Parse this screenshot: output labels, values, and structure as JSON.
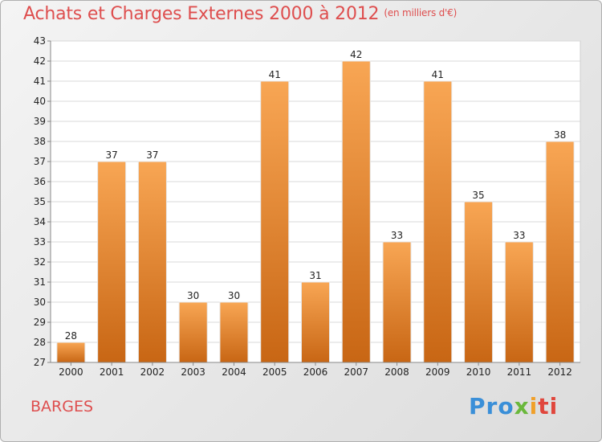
{
  "title": "Achats et Charges Externes 2000 à 2012",
  "subtitle": "(en milliers d'€)",
  "commune": "BARGES",
  "logo": {
    "p1": "Pro",
    "p2": "x",
    "p3": "i",
    "p4": "ti"
  },
  "colors": {
    "bar_light": "#f8a654",
    "bar_dark": "#c86614",
    "title": "#de4e4e"
  },
  "chart_data": {
    "type": "bar",
    "title": "Achats et Charges Externes 2000 à 2012",
    "categories": [
      "2000",
      "2001",
      "2002",
      "2003",
      "2004",
      "2005",
      "2006",
      "2007",
      "2008",
      "2009",
      "2010",
      "2011",
      "2012"
    ],
    "values": [
      28,
      37,
      37,
      30,
      30,
      41,
      31,
      42,
      33,
      41,
      35,
      33,
      38
    ],
    "ylim": [
      27,
      43
    ],
    "grid": true
  }
}
